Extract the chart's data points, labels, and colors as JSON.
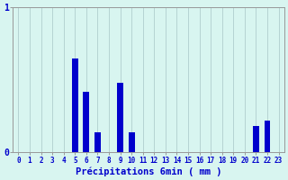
{
  "categories": [
    0,
    1,
    2,
    3,
    4,
    5,
    6,
    7,
    8,
    9,
    10,
    11,
    12,
    13,
    14,
    15,
    16,
    17,
    18,
    19,
    20,
    21,
    22,
    23
  ],
  "values": [
    0,
    0,
    0,
    0,
    0,
    0.65,
    0.42,
    0.14,
    0,
    0.48,
    0.14,
    0,
    0,
    0,
    0,
    0,
    0,
    0,
    0,
    0,
    0,
    0.18,
    0.22,
    0
  ],
  "bar_color": "#0000cc",
  "background_color": "#d8f5f0",
  "grid_color": "#b0cece",
  "axis_color": "#999999",
  "text_color": "#0000cc",
  "xlabel": "Précipitations 6min ( mm )",
  "ylim": [
    0,
    1.0
  ],
  "yticks": [
    0,
    1
  ],
  "xlim": [
    -0.5,
    23.5
  ],
  "bar_width": 0.55,
  "xlabel_fontsize": 7.5,
  "tick_fontsize": 5.5,
  "ytick_fontsize": 7.0
}
